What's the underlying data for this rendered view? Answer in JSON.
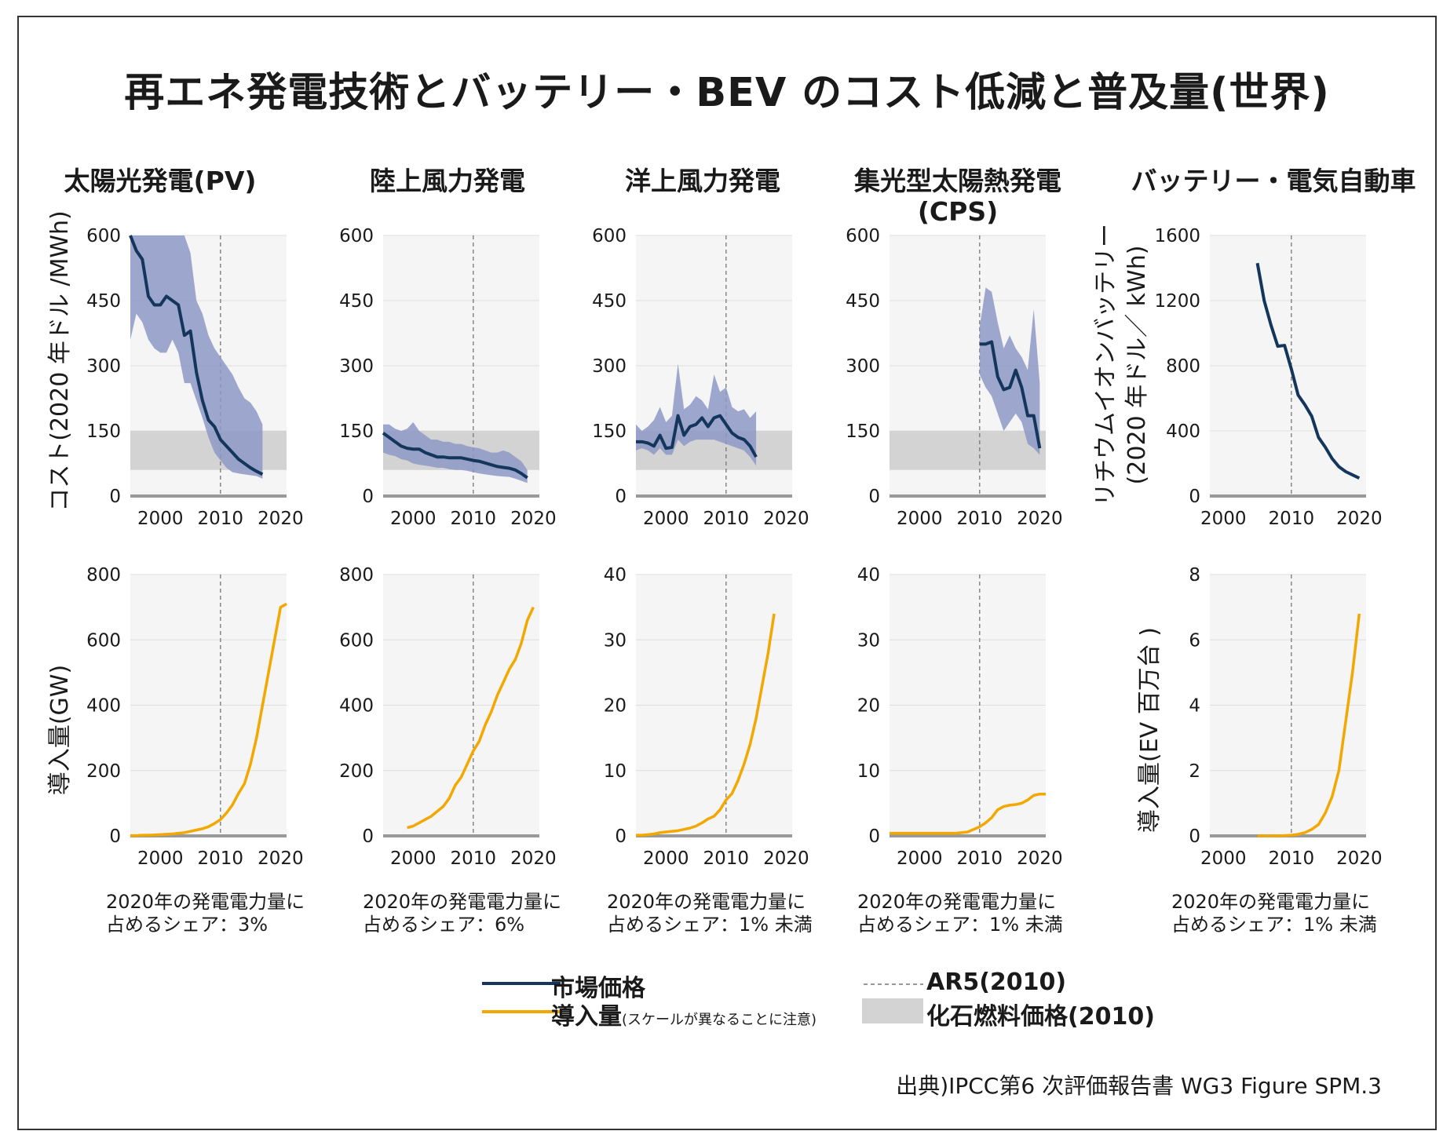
{
  "title": "再エネ発電技術とバッテリー・BEV のコスト低減と普及量(世界)",
  "column_titles": [
    "太陽光発電(PV)",
    "陸上風力発電",
    "洋上風力発電",
    "集光型太陽熱発電\n(CPS)",
    "バッテリー・電気自動車"
  ],
  "y_labels": {
    "cost_common": "コスト(2020 年ドル /MWh)",
    "battery_cost": "リチウムイオンバッテリー\n(2020 年ドル／ kWh)",
    "install_common": "導入量(GW)",
    "ev_install": "導入量(EV 百万台 )"
  },
  "shares": [
    "2020年の発電電力量に\n占めるシェア：3%",
    "2020年の発電電力量に\n占めるシェア：6%",
    "2020年の発電電力量に\n占めるシェア：1% 未満",
    "2020年の発電電力量に\n占めるシェア：1% 未満",
    "2020年の発電電力量に\n占めるシェア：1% 未満"
  ],
  "legend": {
    "market_price": "市場価格",
    "installation": "導入量",
    "installation_note": "(スケールが異なることに注意)",
    "ar5": "AR5(2010)",
    "fossil": "化石燃料価格(2010)"
  },
  "credit": "出典)IPCC第6 次評価報告書 WG3 Figure SPM.3",
  "colors": {
    "price": "#15365c",
    "install": "#f2a800",
    "band": "#8d98c4",
    "fossil": "#d3d3d3",
    "axis": "#999999"
  },
  "chart_data": [
    {
      "type": "area",
      "panel": "PV cost",
      "xlabel": "",
      "ylabel": "コスト(2020 年ドル /MWh)",
      "x_range": [
        1995,
        2021
      ],
      "ylim": [
        0,
        600
      ],
      "yticks": [
        0,
        150,
        300,
        450,
        600
      ],
      "xticks": [
        2000,
        2010,
        2020
      ],
      "fossil_band": [
        60,
        150
      ],
      "ar5_year": 2010,
      "x": [
        1995,
        1996,
        1997,
        1998,
        1999,
        2000,
        2001,
        2002,
        2003,
        2004,
        2005,
        2006,
        2007,
        2008,
        2009,
        2010,
        2011,
        2012,
        2013,
        2014,
        2015,
        2016,
        2017,
        2018,
        2019,
        2020,
        2021
      ],
      "price": [
        600,
        565,
        545,
        460,
        440,
        440,
        460,
        450,
        440,
        370,
        380,
        285,
        220,
        175,
        160,
        130,
        115,
        100,
        85,
        75,
        65,
        57,
        50,
        null,
        null,
        null,
        null
      ],
      "upper": [
        600,
        600,
        600,
        600,
        600,
        600,
        600,
        600,
        600,
        600,
        560,
        450,
        420,
        370,
        340,
        320,
        300,
        280,
        250,
        225,
        215,
        195,
        165,
        null,
        null,
        null,
        null
      ],
      "lower": [
        360,
        420,
        400,
        360,
        340,
        330,
        330,
        360,
        330,
        260,
        260,
        220,
        180,
        135,
        100,
        82,
        65,
        55,
        52,
        50,
        48,
        46,
        40,
        null,
        null,
        null,
        null
      ],
      "price_label": "市場価格"
    },
    {
      "type": "area",
      "panel": "Onshore wind cost",
      "ylim": [
        0,
        600
      ],
      "yticks": [
        0,
        150,
        300,
        450,
        600
      ],
      "xticks": [
        2000,
        2010,
        2020
      ],
      "x_range": [
        1995,
        2021
      ],
      "fossil_band": [
        60,
        150
      ],
      "ar5_year": 2010,
      "x": [
        1995,
        1996,
        1997,
        1998,
        1999,
        2000,
        2001,
        2002,
        2003,
        2004,
        2005,
        2006,
        2007,
        2008,
        2009,
        2010,
        2011,
        2012,
        2013,
        2014,
        2015,
        2016,
        2017,
        2018,
        2019,
        2020,
        2021
      ],
      "price": [
        145,
        135,
        125,
        115,
        110,
        108,
        108,
        100,
        95,
        90,
        90,
        88,
        88,
        88,
        85,
        82,
        80,
        76,
        72,
        68,
        66,
        64,
        60,
        52,
        42,
        null,
        null
      ],
      "upper": [
        165,
        165,
        155,
        150,
        155,
        170,
        150,
        140,
        130,
        130,
        125,
        125,
        120,
        120,
        115,
        112,
        110,
        105,
        100,
        100,
        105,
        100,
        90,
        80,
        60,
        null,
        null
      ],
      "lower": [
        100,
        95,
        92,
        85,
        82,
        75,
        72,
        70,
        68,
        65,
        65,
        62,
        60,
        60,
        58,
        55,
        52,
        50,
        48,
        46,
        45,
        44,
        40,
        35,
        30,
        null,
        null
      ]
    },
    {
      "type": "area",
      "panel": "Offshore wind cost",
      "ylim": [
        0,
        600
      ],
      "yticks": [
        0,
        150,
        300,
        450,
        600
      ],
      "xticks": [
        2000,
        2010,
        2020
      ],
      "x_range": [
        1995,
        2021
      ],
      "fossil_band": [
        60,
        150
      ],
      "ar5_year": 2010,
      "x": [
        1995,
        1996,
        1997,
        1998,
        1999,
        2000,
        2001,
        2002,
        2003,
        2004,
        2005,
        2006,
        2007,
        2008,
        2009,
        2010,
        2011,
        2012,
        2013,
        2014,
        2015,
        2016,
        2017,
        2018,
        2019,
        2020,
        2021
      ],
      "price": [
        125,
        125,
        122,
        115,
        140,
        110,
        112,
        185,
        140,
        160,
        165,
        180,
        160,
        180,
        185,
        165,
        145,
        135,
        130,
        115,
        90,
        null,
        null,
        null,
        null,
        null,
        null
      ],
      "upper": [
        165,
        150,
        160,
        175,
        205,
        170,
        185,
        305,
        200,
        210,
        230,
        220,
        200,
        280,
        240,
        250,
        205,
        195,
        200,
        180,
        195,
        null,
        null,
        null,
        null,
        null,
        null
      ],
      "lower": [
        105,
        110,
        105,
        95,
        110,
        95,
        95,
        130,
        115,
        125,
        130,
        130,
        130,
        130,
        125,
        120,
        115,
        110,
        105,
        90,
        70,
        null,
        null,
        null,
        null,
        null,
        null
      ]
    },
    {
      "type": "area",
      "panel": "CSP cost",
      "ylim": [
        0,
        600
      ],
      "yticks": [
        0,
        150,
        300,
        450,
        600
      ],
      "xticks": [
        2000,
        2010,
        2020
      ],
      "x_range": [
        1995,
        2021
      ],
      "fossil_band": [
        60,
        150
      ],
      "ar5_year": 2010,
      "x": [
        2010,
        2011,
        2012,
        2013,
        2014,
        2015,
        2016,
        2017,
        2018,
        2019,
        2020,
        2021
      ],
      "price": [
        350,
        350,
        355,
        275,
        245,
        250,
        290,
        250,
        185,
        185,
        110,
        null
      ],
      "upper": [
        390,
        480,
        470,
        400,
        340,
        370,
        340,
        320,
        290,
        430,
        260,
        null
      ],
      "lower": [
        280,
        250,
        230,
        190,
        150,
        170,
        190,
        170,
        120,
        110,
        95,
        null
      ]
    },
    {
      "type": "line",
      "panel": "Li-ion battery cost",
      "ylabel": "リチウムイオンバッテリー(2020 年ドル／ kWh)",
      "ylim": [
        0,
        1600
      ],
      "yticks": [
        0,
        400,
        800,
        1200,
        1600
      ],
      "xticks": [
        2000,
        2010,
        2020
      ],
      "x_range": [
        1998,
        2021
      ],
      "ar5_year": 2010,
      "x": [
        2005,
        2006,
        2007,
        2008,
        2009,
        2010,
        2011,
        2012,
        2013,
        2014,
        2015,
        2016,
        2017,
        2018,
        2019,
        2020
      ],
      "price": [
        1430,
        1200,
        1050,
        920,
        925,
        780,
        620,
        560,
        490,
        360,
        300,
        230,
        180,
        150,
        130,
        110
      ]
    },
    {
      "type": "line",
      "panel": "PV installations",
      "ylabel": "導入量(GW)",
      "ylim": [
        0,
        800
      ],
      "yticks": [
        0,
        200,
        400,
        600,
        800
      ],
      "xticks": [
        2000,
        2010,
        2020
      ],
      "x_range": [
        1995,
        2021
      ],
      "ar5_year": 2010,
      "x": [
        1995,
        1996,
        1997,
        1998,
        1999,
        2000,
        2001,
        2002,
        2003,
        2004,
        2005,
        2006,
        2007,
        2008,
        2009,
        2010,
        2011,
        2012,
        2013,
        2014,
        2015,
        2016,
        2017,
        2018,
        2019,
        2020,
        2021
      ],
      "install": [
        1,
        1,
        2,
        2,
        3,
        4,
        5,
        6,
        8,
        10,
        14,
        18,
        22,
        28,
        38,
        50,
        70,
        95,
        130,
        160,
        220,
        300,
        400,
        500,
        600,
        700,
        710
      ]
    },
    {
      "type": "line",
      "panel": "Onshore wind installations",
      "ylim": [
        0,
        800
      ],
      "yticks": [
        0,
        200,
        400,
        600,
        800
      ],
      "xticks": [
        2000,
        2010,
        2020
      ],
      "x_range": [
        1995,
        2021
      ],
      "ar5_year": 2010,
      "x": [
        1999,
        2000,
        2001,
        2002,
        2003,
        2004,
        2005,
        2006,
        2007,
        2008,
        2009,
        2010,
        2011,
        2012,
        2013,
        2014,
        2015,
        2016,
        2017,
        2018,
        2019,
        2020,
        2021
      ],
      "install": [
        25,
        30,
        40,
        50,
        60,
        75,
        90,
        115,
        155,
        180,
        220,
        260,
        290,
        340,
        380,
        430,
        470,
        510,
        540,
        590,
        660,
        700,
        null
      ]
    },
    {
      "type": "line",
      "panel": "Offshore wind installations",
      "ylim": [
        0,
        40
      ],
      "yticks": [
        0,
        10,
        20,
        30,
        40
      ],
      "xticks": [
        2000,
        2010,
        2020
      ],
      "x_range": [
        1995,
        2021
      ],
      "ar5_year": 2010,
      "x": [
        1995,
        1996,
        1997,
        1998,
        1999,
        2000,
        2001,
        2002,
        2003,
        2004,
        2005,
        2006,
        2007,
        2008,
        2009,
        2010,
        2011,
        2012,
        2013,
        2014,
        2015,
        2016,
        2017,
        2018,
        2019,
        2020,
        2021
      ],
      "install": [
        0.1,
        0.1,
        0.2,
        0.3,
        0.5,
        0.6,
        0.7,
        0.8,
        1.0,
        1.2,
        1.5,
        2.0,
        2.6,
        3.0,
        4.0,
        5.5,
        6.5,
        8.5,
        11,
        14,
        18,
        23,
        28,
        34,
        null,
        null,
        null
      ]
    },
    {
      "type": "line",
      "panel": "CSP installations",
      "ylim": [
        0,
        40
      ],
      "yticks": [
        0,
        10,
        20,
        30,
        40
      ],
      "xticks": [
        2000,
        2010,
        2020
      ],
      "x_range": [
        1995,
        2021
      ],
      "ar5_year": 2010,
      "x": [
        1995,
        1996,
        1997,
        1998,
        1999,
        2000,
        2001,
        2002,
        2003,
        2004,
        2005,
        2006,
        2007,
        2008,
        2009,
        2010,
        2011,
        2012,
        2013,
        2014,
        2015,
        2016,
        2017,
        2018,
        2019,
        2020,
        2021
      ],
      "install": [
        0.4,
        0.4,
        0.4,
        0.4,
        0.4,
        0.4,
        0.4,
        0.4,
        0.4,
        0.4,
        0.4,
        0.4,
        0.5,
        0.6,
        1.0,
        1.4,
        2.0,
        2.8,
        4.0,
        4.5,
        4.7,
        4.8,
        5.0,
        5.5,
        6.2,
        6.4,
        6.4
      ]
    },
    {
      "type": "line",
      "panel": "EV installations",
      "ylabel": "導入量(EV 百万台 )",
      "ylim": [
        0,
        8
      ],
      "yticks": [
        0,
        2,
        4,
        6,
        8
      ],
      "xticks": [
        2000,
        2010,
        2020
      ],
      "x_range": [
        1998,
        2021
      ],
      "ar5_year": 2010,
      "x": [
        2005,
        2006,
        2007,
        2008,
        2009,
        2010,
        2011,
        2012,
        2013,
        2014,
        2015,
        2016,
        2017,
        2018,
        2019,
        2020
      ],
      "install": [
        0,
        0,
        0,
        0,
        0.01,
        0.02,
        0.05,
        0.1,
        0.2,
        0.35,
        0.7,
        1.2,
        2.0,
        3.5,
        5.0,
        6.8
      ]
    }
  ]
}
